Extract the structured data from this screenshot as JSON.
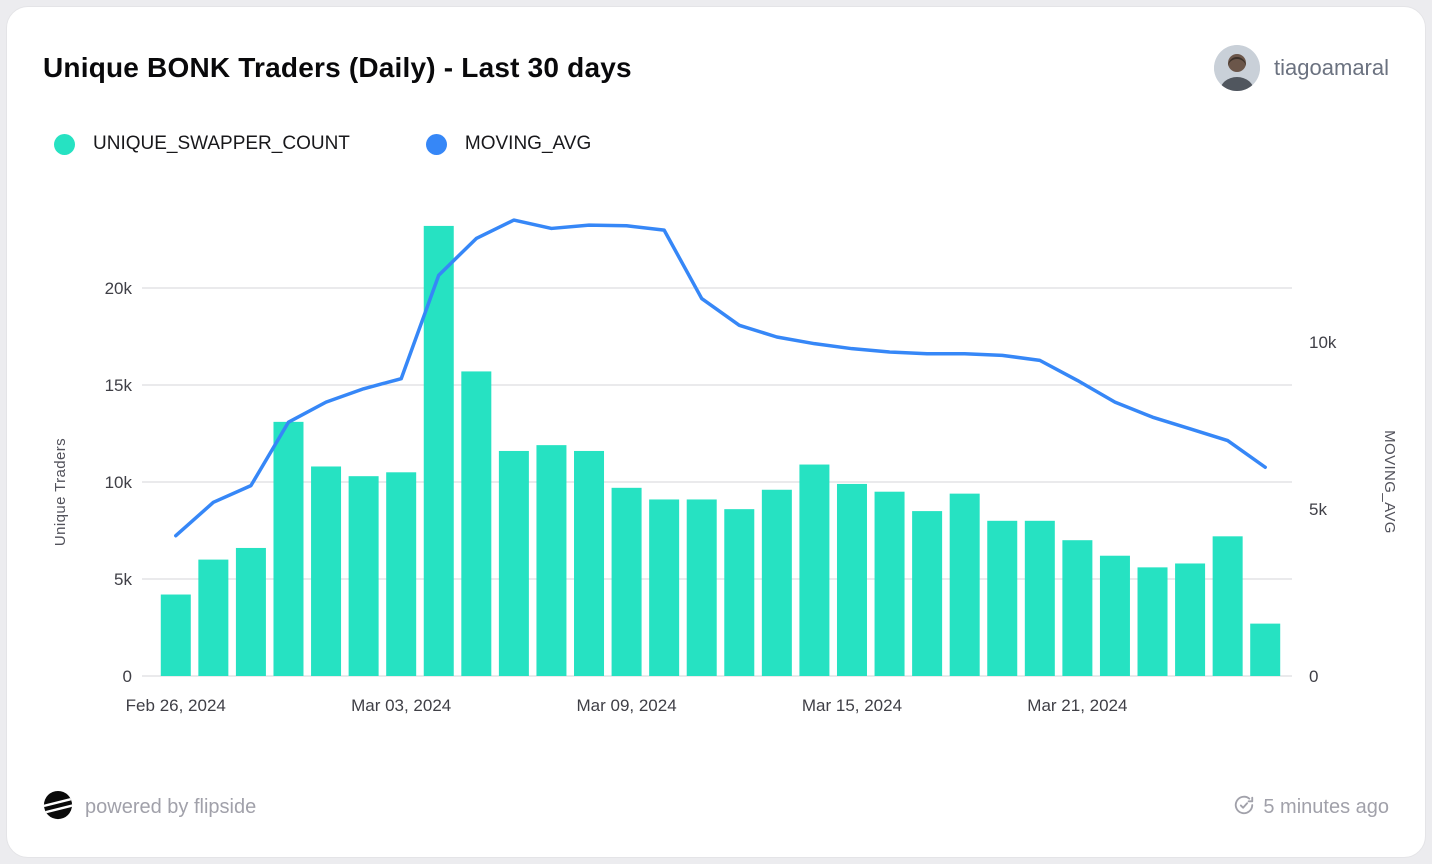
{
  "header": {
    "title": "Unique BONK Traders (Daily) - Last 30 days",
    "user": "tiagoamaral"
  },
  "legend": [
    {
      "label": "UNIQUE_SWAPPER_COUNT",
      "color": "#26E2C2"
    },
    {
      "label": "MOVING_AVG",
      "color": "#3687F7"
    }
  ],
  "chart_data": {
    "type": "bar",
    "title": "Unique BONK Traders (Daily) - Last 30 days",
    "x": [
      "Feb 26, 2024",
      "Feb 27, 2024",
      "Feb 28, 2024",
      "Feb 29, 2024",
      "Mar 01, 2024",
      "Mar 02, 2024",
      "Mar 03, 2024",
      "Mar 04, 2024",
      "Mar 05, 2024",
      "Mar 06, 2024",
      "Mar 07, 2024",
      "Mar 08, 2024",
      "Mar 09, 2024",
      "Mar 10, 2024",
      "Mar 11, 2024",
      "Mar 12, 2024",
      "Mar 13, 2024",
      "Mar 14, 2024",
      "Mar 15, 2024",
      "Mar 16, 2024",
      "Mar 17, 2024",
      "Mar 18, 2024",
      "Mar 19, 2024",
      "Mar 20, 2024",
      "Mar 21, 2024",
      "Mar 22, 2024",
      "Mar 23, 2024",
      "Mar 24, 2024",
      "Mar 25, 2024",
      "Mar 26, 2024"
    ],
    "series": [
      {
        "name": "UNIQUE_SWAPPER_COUNT",
        "type": "bar",
        "axis": "left",
        "color": "#26E2C2",
        "values": [
          4200,
          6000,
          6600,
          13100,
          10800,
          10300,
          10500,
          23200,
          15700,
          11600,
          11900,
          11600,
          9700,
          9100,
          9100,
          8600,
          9600,
          10900,
          9900,
          9500,
          8500,
          9400,
          8000,
          8000,
          7000,
          6200,
          5600,
          5800,
          7200,
          2700
        ]
      },
      {
        "name": "MOVING_AVG",
        "type": "line",
        "axis": "right",
        "color": "#3687F7",
        "values": [
          4200,
          5200,
          5700,
          7600,
          8200,
          8600,
          8900,
          12000,
          13100,
          13650,
          13400,
          13500,
          13480,
          13350,
          11300,
          10500,
          10150,
          9950,
          9800,
          9700,
          9650,
          9650,
          9600,
          9450,
          8850,
          8200,
          7750,
          7400,
          7050,
          6250
        ]
      }
    ],
    "left_axis": {
      "label": "Unique Traders",
      "ticks": [
        "0",
        "5k",
        "10k",
        "15k",
        "20k"
      ],
      "tick_values": [
        0,
        5000,
        10000,
        15000,
        20000
      ],
      "range": [
        0,
        24000
      ]
    },
    "right_axis": {
      "label": "MOVING_AVG",
      "ticks": [
        "0",
        "5k",
        "10k"
      ],
      "tick_values": [
        0,
        5000,
        10000
      ],
      "range": [
        0,
        14500
      ]
    },
    "x_ticks": [
      {
        "index": 0,
        "label": "Feb 26, 2024"
      },
      {
        "index": 6,
        "label": "Mar 03, 2024"
      },
      {
        "index": 12,
        "label": "Mar 09, 2024"
      },
      {
        "index": 18,
        "label": "Mar 15, 2024"
      },
      {
        "index": 24,
        "label": "Mar 21, 2024"
      }
    ],
    "grid": true,
    "legend_position": "top-left"
  },
  "footer": {
    "powered_by": "powered by flipside",
    "updated": "5 minutes ago"
  }
}
